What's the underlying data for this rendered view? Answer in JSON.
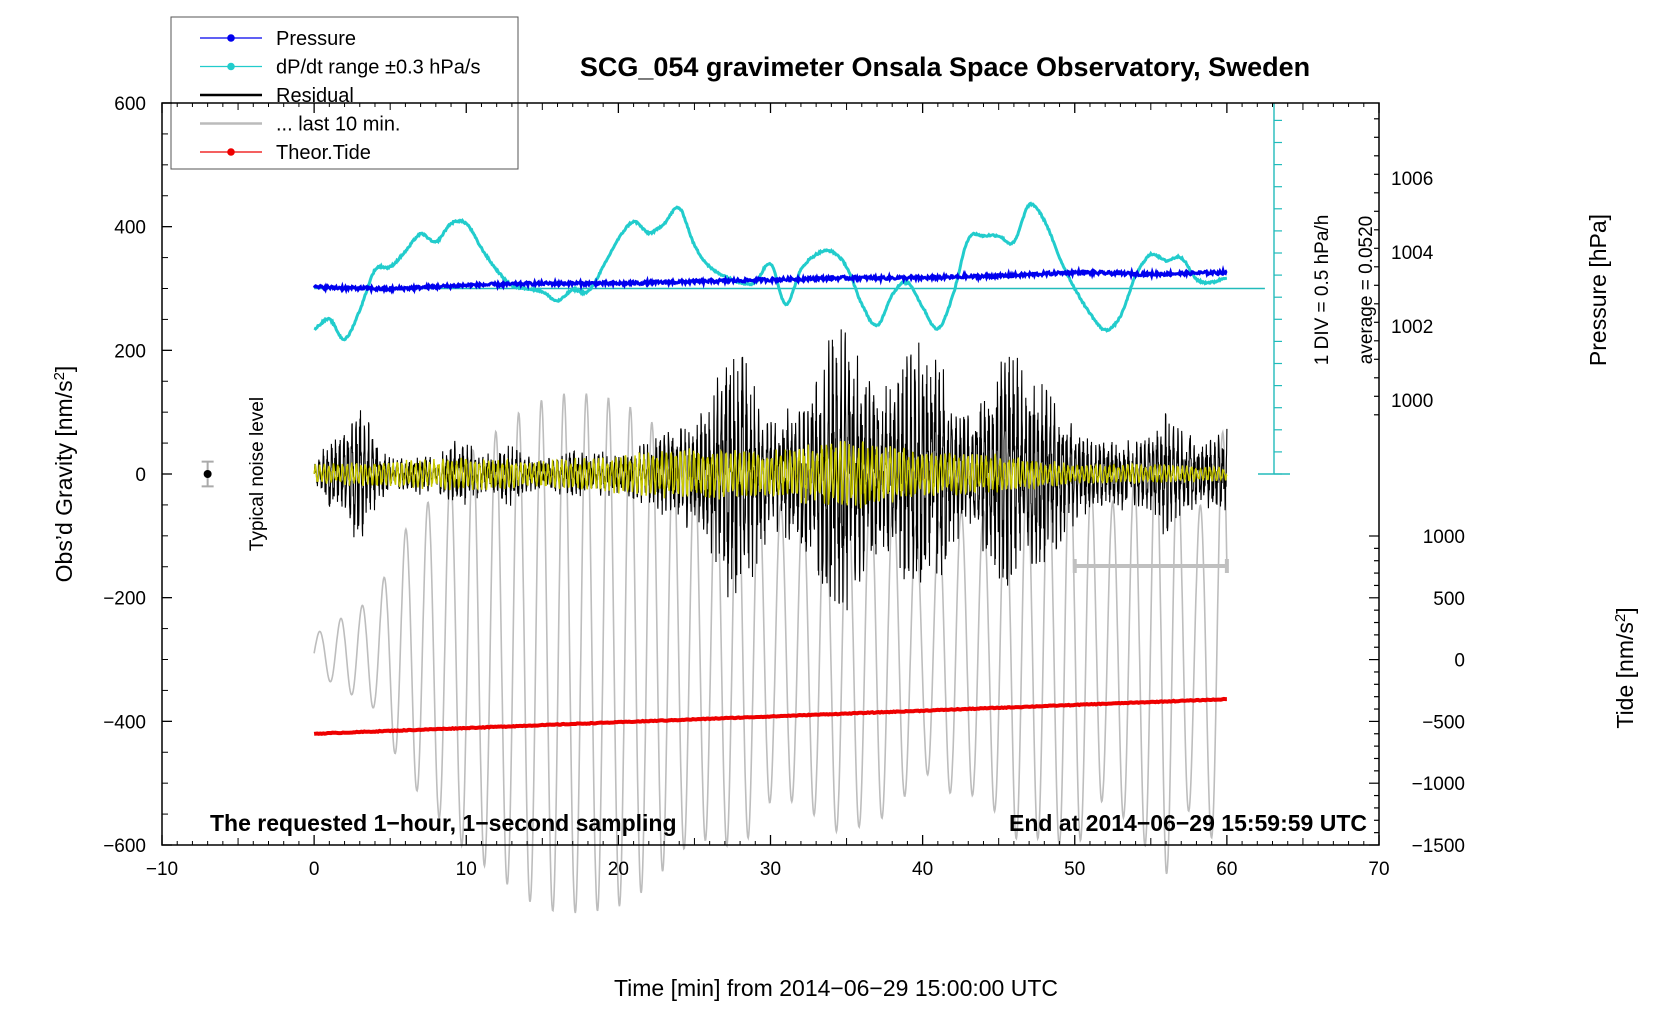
{
  "chart_data": {
    "type": "line",
    "title": "SCG_054 gravimeter Onsala Space Observatory, Sweden",
    "xlabel": "Time [min] from 2014−06−29 15:00:00 UTC",
    "ylabel_left": "Obs’d Gravity [nm/s",
    "ylabel_left_sup": "2",
    "ylabel_left_close": "]",
    "ylabel_right_pressure": "Pressure [hPa]",
    "ylabel_right_tide": "Tide [nm/s",
    "ylabel_right_tide_sup": "2",
    "ylabel_right_tide_close": "]",
    "xlim": [
      -10,
      70
    ],
    "ylim": [
      -600,
      600
    ],
    "pressure_lim_visible": [
      1000,
      1006
    ],
    "tide_lim_visible": [
      -1500,
      1000
    ],
    "x_ticks": [
      "−10",
      "0",
      "10",
      "20",
      "30",
      "40",
      "50",
      "60",
      "70"
    ],
    "x_tick_values": [
      -10,
      0,
      10,
      20,
      30,
      40,
      50,
      60,
      70
    ],
    "y_ticks": [
      "600",
      "400",
      "200",
      "0",
      "−200",
      "−400",
      "−600"
    ],
    "y_tick_values": [
      600,
      400,
      200,
      0,
      -200,
      -400,
      -600
    ],
    "pressure_ticks": [
      "1006",
      "1004",
      "1002",
      "1000"
    ],
    "pressure_tick_values": [
      1006,
      1004,
      1002,
      1000
    ],
    "tide_ticks": [
      "1000",
      "500",
      "0",
      "−500",
      "−1000",
      "−1500"
    ],
    "tide_tick_values": [
      1000,
      500,
      0,
      -500,
      -1000,
      -1500
    ],
    "grid": false,
    "legend_position": "top-left",
    "legend": [
      {
        "label": "Pressure",
        "color": "#0000ee",
        "marker": true
      },
      {
        "label": "dP/dt range ±0.3 hPa/s",
        "color": "#22cccc",
        "marker": true
      },
      {
        "label": "Residual",
        "color": "#000000",
        "marker": false
      },
      {
        "label": "... last 10 min.",
        "color": "#bbbbbb",
        "marker": false
      },
      {
        "label": "Theor.Tide",
        "color": "#ee0000",
        "marker": true
      }
    ],
    "annotations": {
      "noise": "Typical noise level",
      "noise_value": 0,
      "noise_range": [
        -20,
        20
      ],
      "noise_x": -7,
      "div": "1 DIV = 0.5 hPa/h",
      "average": "average = 0.0520",
      "left_bottom": "The requested 1−hour, 1−second sampling",
      "right_bottom": "End at 2014−06−29 15:59:59 UTC",
      "last10_range_min": [
        50,
        60
      ]
    },
    "series": [
      {
        "name": "Pressure",
        "axis": "pressure_hPa",
        "x": [
          0,
          5,
          10,
          15,
          20,
          25,
          30,
          35,
          40,
          45,
          50,
          55,
          60
        ],
        "values": [
          1003.05,
          1003.0,
          1003.1,
          1003.15,
          1003.15,
          1003.2,
          1003.25,
          1003.3,
          1003.3,
          1003.35,
          1003.45,
          1003.4,
          1003.45
        ]
      },
      {
        "name": "dP/dt",
        "axis": "gravity_nm_s2",
        "x": [
          0,
          1,
          2,
          3,
          4,
          5,
          6,
          7,
          8,
          9,
          10,
          11,
          12,
          13,
          14,
          15,
          16,
          17,
          18,
          19,
          20,
          21,
          22,
          23,
          24,
          25,
          26,
          27,
          28,
          29,
          30,
          31,
          32,
          33,
          34,
          35,
          36,
          37,
          38,
          39,
          40,
          41,
          42,
          43,
          44,
          45,
          46,
          47,
          48,
          49,
          50,
          51,
          52,
          53,
          54,
          55,
          56,
          57,
          58,
          59,
          60
        ],
        "values": [
          235,
          250,
          218,
          265,
          330,
          335,
          360,
          388,
          375,
          405,
          405,
          365,
          330,
          305,
          300,
          295,
          280,
          298,
          295,
          335,
          380,
          408,
          390,
          405,
          430,
          370,
          335,
          320,
          310,
          310,
          340,
          275,
          330,
          355,
          360,
          335,
          275,
          240,
          290,
          310,
          270,
          235,
          290,
          380,
          385,
          385,
          375,
          435,
          410,
          350,
          300,
          260,
          233,
          255,
          320,
          355,
          345,
          350,
          315,
          310,
          318
        ]
      },
      {
        "name": "dP/dt baseline",
        "axis": "gravity_nm_s2",
        "x": [
          0,
          62.5
        ],
        "values": [
          300,
          300
        ]
      },
      {
        "name": "Residual envelope",
        "axis": "gravity_nm_s2",
        "x": [
          0,
          1,
          2,
          3,
          4,
          5,
          6,
          7,
          8,
          9,
          10,
          11,
          12,
          13,
          14,
          15,
          16,
          17,
          18,
          19,
          20,
          21,
          22,
          23,
          24,
          25,
          26,
          27,
          28,
          29,
          30,
          31,
          32,
          33,
          34,
          35,
          36,
          37,
          38,
          39,
          40,
          41,
          42,
          43,
          44,
          45,
          46,
          47,
          48,
          49,
          50,
          51,
          52,
          53,
          54,
          55,
          56,
          57,
          58,
          59,
          60
        ],
        "values": [
          15,
          60,
          70,
          130,
          60,
          30,
          25,
          35,
          25,
          55,
          50,
          40,
          35,
          60,
          30,
          25,
          35,
          45,
          30,
          40,
          30,
          45,
          55,
          70,
          85,
          90,
          120,
          210,
          215,
          160,
          90,
          110,
          130,
          170,
          240,
          260,
          180,
          150,
          140,
          210,
          220,
          210,
          120,
          100,
          140,
          190,
          200,
          150,
          170,
          130,
          80,
          60,
          55,
          60,
          55,
          60,
          110,
          70,
          70,
          60,
          75
        ]
      },
      {
        "name": "Residual yellow envelope",
        "axis": "gravity_nm_s2",
        "x": [
          0,
          5,
          10,
          15,
          20,
          25,
          30,
          35,
          40,
          45,
          50,
          55,
          60
        ],
        "values": [
          15,
          20,
          25,
          20,
          30,
          40,
          35,
          55,
          35,
          30,
          15,
          15,
          10
        ]
      },
      {
        "name": "... last 10 min. envelope",
        "axis": "gravity_nm_s2",
        "x": [
          0,
          2,
          4,
          6,
          8,
          10,
          12,
          14,
          16,
          18,
          20,
          22,
          24,
          26,
          28,
          30,
          32,
          34,
          36,
          38,
          40,
          42,
          44,
          46,
          48,
          50,
          52,
          54,
          56,
          58,
          60
        ],
        "values": [
          30,
          60,
          90,
          200,
          260,
          320,
          360,
          400,
          420,
          420,
          410,
          380,
          320,
          300,
          320,
          240,
          240,
          290,
          280,
          260,
          190,
          230,
          230,
          300,
          300,
          320,
          230,
          290,
          360,
          220,
          380
        ],
        "center": -290
      },
      {
        "name": "Theor.Tide",
        "axis": "tide_nm_s2",
        "x": [
          0,
          60
        ],
        "values": [
          -600,
          -320
        ]
      }
    ]
  }
}
